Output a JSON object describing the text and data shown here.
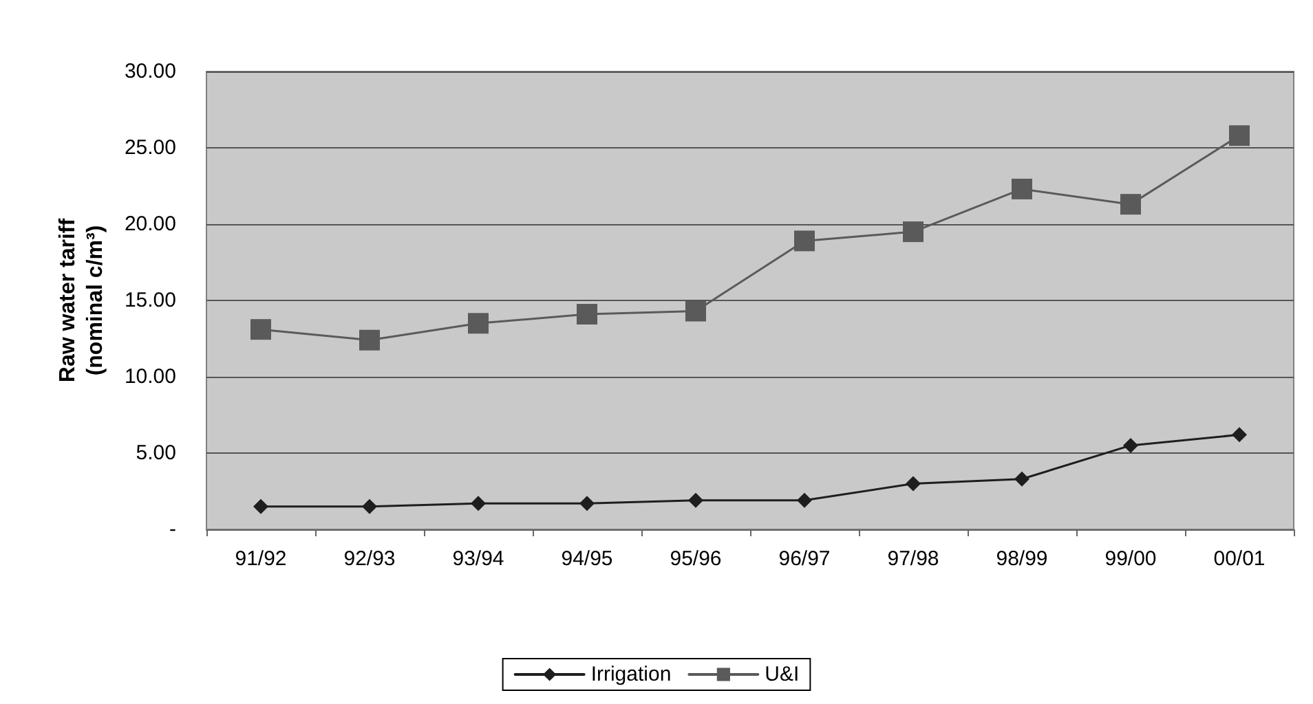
{
  "chart_data": {
    "type": "line",
    "ylabel": "Raw water tariff\n(nominal c/m³)",
    "categories": [
      "91/92",
      "92/93",
      "93/94",
      "94/95",
      "95/96",
      "96/97",
      "97/98",
      "98/99",
      "99/00",
      "00/01"
    ],
    "series": [
      {
        "name": "Irrigation",
        "color": "#1e1e1e",
        "marker": "diamond",
        "values": [
          1.5,
          1.5,
          1.7,
          1.7,
          1.9,
          1.9,
          3.0,
          3.3,
          5.5,
          6.2
        ]
      },
      {
        "name": "U&I",
        "color": "#5a5a5a",
        "marker": "square",
        "values": [
          13.1,
          12.4,
          13.5,
          14.1,
          14.3,
          18.9,
          19.5,
          22.3,
          21.3,
          25.8
        ]
      }
    ],
    "ylim": [
      0,
      30
    ],
    "yticks": [
      {
        "value": 0,
        "label": "-"
      },
      {
        "value": 5,
        "label": "5.00"
      },
      {
        "value": 10,
        "label": "10.00"
      },
      {
        "value": 15,
        "label": "15.00"
      },
      {
        "value": 20,
        "label": "20.00"
      },
      {
        "value": 25,
        "label": "25.00"
      },
      {
        "value": 30,
        "label": "30.00"
      }
    ],
    "grid": "y",
    "legend": "bottom",
    "line_style": "solid"
  }
}
